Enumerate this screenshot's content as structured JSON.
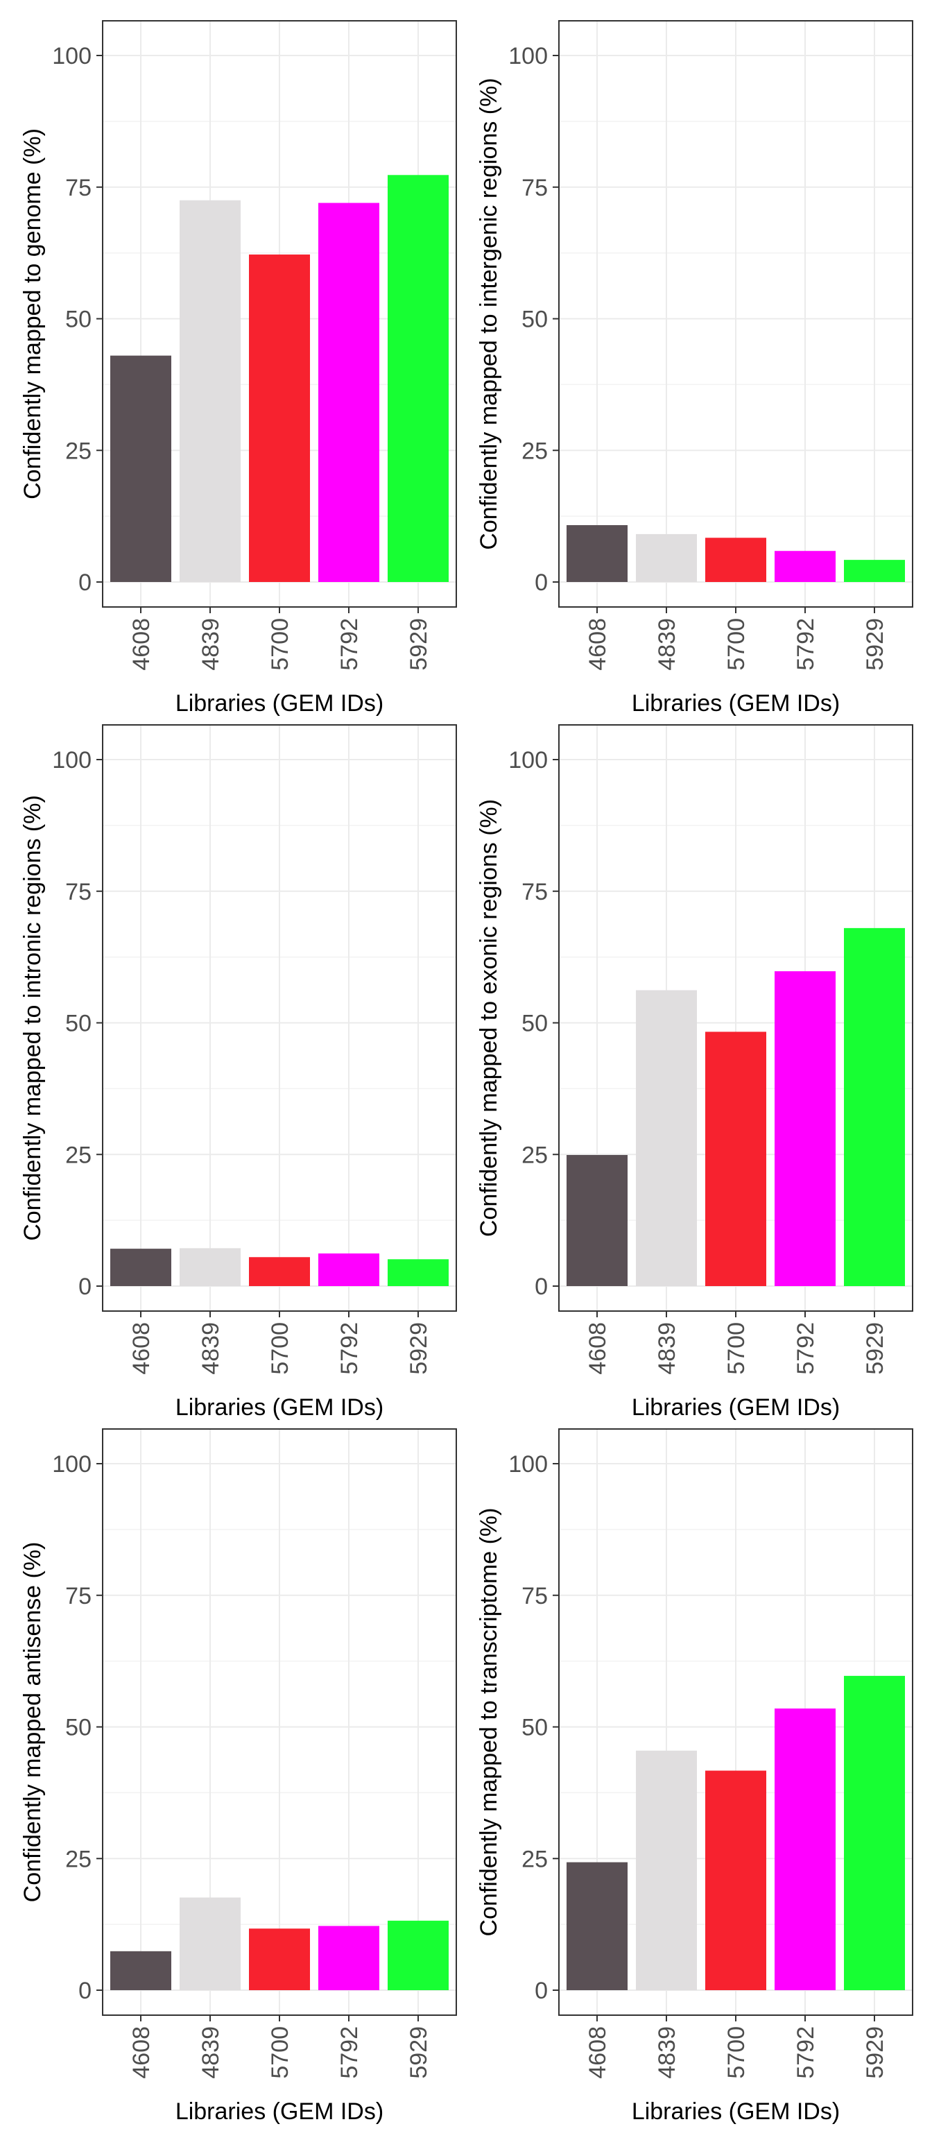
{
  "chart_data": [
    {
      "type": "bar",
      "categories": [
        "4608",
        "4839",
        "5700",
        "5792",
        "5929"
      ],
      "values": [
        43,
        72.5,
        62.2,
        72,
        77.3
      ],
      "xlabel": "Libraries (GEM IDs)",
      "ylabel": "Confidently mapped to genome (%)",
      "ylim": [
        0,
        100
      ],
      "yticks": [
        0,
        25,
        50,
        75,
        100
      ],
      "grid": true,
      "bar_colors": [
        "#5a5055",
        "#e0dedf",
        "#f7222f",
        "#ff00ff",
        "#17ff33"
      ]
    },
    {
      "type": "bar",
      "categories": [
        "4608",
        "4839",
        "5700",
        "5792",
        "5929"
      ],
      "values": [
        10.8,
        9.1,
        8.4,
        5.9,
        4.2
      ],
      "xlabel": "Libraries (GEM IDs)",
      "ylabel": "Confidently mapped to intergenic regions (%)",
      "ylim": [
        0,
        100
      ],
      "yticks": [
        0,
        25,
        50,
        75,
        100
      ],
      "grid": true,
      "bar_colors": [
        "#5a5055",
        "#e0dedf",
        "#f7222f",
        "#ff00ff",
        "#17ff33"
      ]
    },
    {
      "type": "bar",
      "categories": [
        "4608",
        "4839",
        "5700",
        "5792",
        "5929"
      ],
      "values": [
        7.1,
        7.2,
        5.5,
        6.2,
        5.1
      ],
      "xlabel": "Libraries (GEM IDs)",
      "ylabel": "Confidently mapped to intronic regions (%)",
      "ylim": [
        0,
        100
      ],
      "yticks": [
        0,
        25,
        50,
        75,
        100
      ],
      "grid": true,
      "bar_colors": [
        "#5a5055",
        "#e0dedf",
        "#f7222f",
        "#ff00ff",
        "#17ff33"
      ]
    },
    {
      "type": "bar",
      "categories": [
        "4608",
        "4839",
        "5700",
        "5792",
        "5929"
      ],
      "values": [
        24.9,
        56.2,
        48.3,
        59.8,
        68
      ],
      "xlabel": "Libraries (GEM IDs)",
      "ylabel": "Confidently mapped to exonic regions (%)",
      "ylim": [
        0,
        100
      ],
      "yticks": [
        0,
        25,
        50,
        75,
        100
      ],
      "grid": true,
      "bar_colors": [
        "#5a5055",
        "#e0dedf",
        "#f7222f",
        "#ff00ff",
        "#17ff33"
      ]
    },
    {
      "type": "bar",
      "categories": [
        "4608",
        "4839",
        "5700",
        "5792",
        "5929"
      ],
      "values": [
        7.4,
        17.6,
        11.7,
        12.2,
        13.2
      ],
      "xlabel": "Libraries (GEM IDs)",
      "ylabel": "Confidently mapped antisense (%)",
      "ylim": [
        0,
        100
      ],
      "yticks": [
        0,
        25,
        50,
        75,
        100
      ],
      "grid": true,
      "bar_colors": [
        "#5a5055",
        "#e0dedf",
        "#f7222f",
        "#ff00ff",
        "#17ff33"
      ]
    },
    {
      "type": "bar",
      "categories": [
        "4608",
        "4839",
        "5700",
        "5792",
        "5929"
      ],
      "values": [
        24.3,
        45.5,
        41.7,
        53.5,
        59.7
      ],
      "xlabel": "Libraries (GEM IDs)",
      "ylabel": "Confidently mapped to transcriptome (%)",
      "ylim": [
        0,
        100
      ],
      "yticks": [
        0,
        25,
        50,
        75,
        100
      ],
      "grid": true,
      "bar_colors": [
        "#5a5055",
        "#e0dedf",
        "#f7222f",
        "#ff00ff",
        "#17ff33"
      ]
    }
  ]
}
